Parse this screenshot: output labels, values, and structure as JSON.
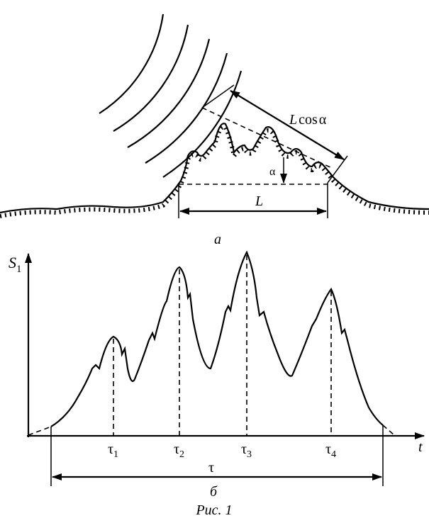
{
  "part_a": {
    "length_projection": {
      "symbol": "L",
      "function": "cos",
      "angle": "α"
    },
    "angle_label": "α",
    "length_label": "L",
    "caption": "а"
  },
  "part_b": {
    "y_axis": {
      "symbol": "S",
      "subscript": "1"
    },
    "x_axis": "t",
    "time_marks": [
      {
        "symbol": "τ",
        "subscript": "1"
      },
      {
        "symbol": "τ",
        "subscript": "2"
      },
      {
        "symbol": "τ",
        "subscript": "3"
      },
      {
        "symbol": "τ",
        "subscript": "4"
      }
    ],
    "duration_label": "τ",
    "caption": "б"
  },
  "figure_caption": "Рис. 1"
}
